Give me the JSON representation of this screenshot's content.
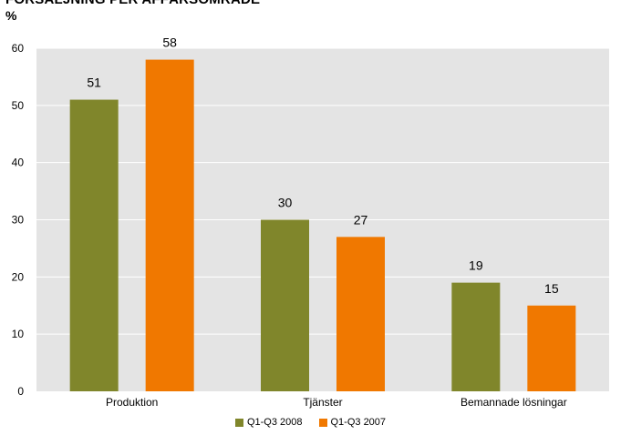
{
  "chart_data": {
    "type": "bar",
    "title": "FÖRSÄLJNING PER AFFÄRSOMRÅDE",
    "ylabel": "%",
    "xlabel": "",
    "categories": [
      "Produktion",
      "Tjänster",
      "Bemannade lösningar"
    ],
    "series": [
      {
        "name": "Q1-Q3 2008",
        "values": [
          51,
          30,
          19
        ],
        "color": "#80862b"
      },
      {
        "name": "Q1-Q3 2007",
        "values": [
          58,
          27,
          15
        ],
        "color": "#f07800"
      }
    ],
    "ylim": [
      0,
      60
    ],
    "yticks": [
      0,
      10,
      20,
      30,
      40,
      50,
      60
    ],
    "grid": true,
    "plot_background": "#e4e4e4",
    "gridline_color": "#ffffff",
    "legend_position": "bottom-center",
    "data_labels": true
  }
}
